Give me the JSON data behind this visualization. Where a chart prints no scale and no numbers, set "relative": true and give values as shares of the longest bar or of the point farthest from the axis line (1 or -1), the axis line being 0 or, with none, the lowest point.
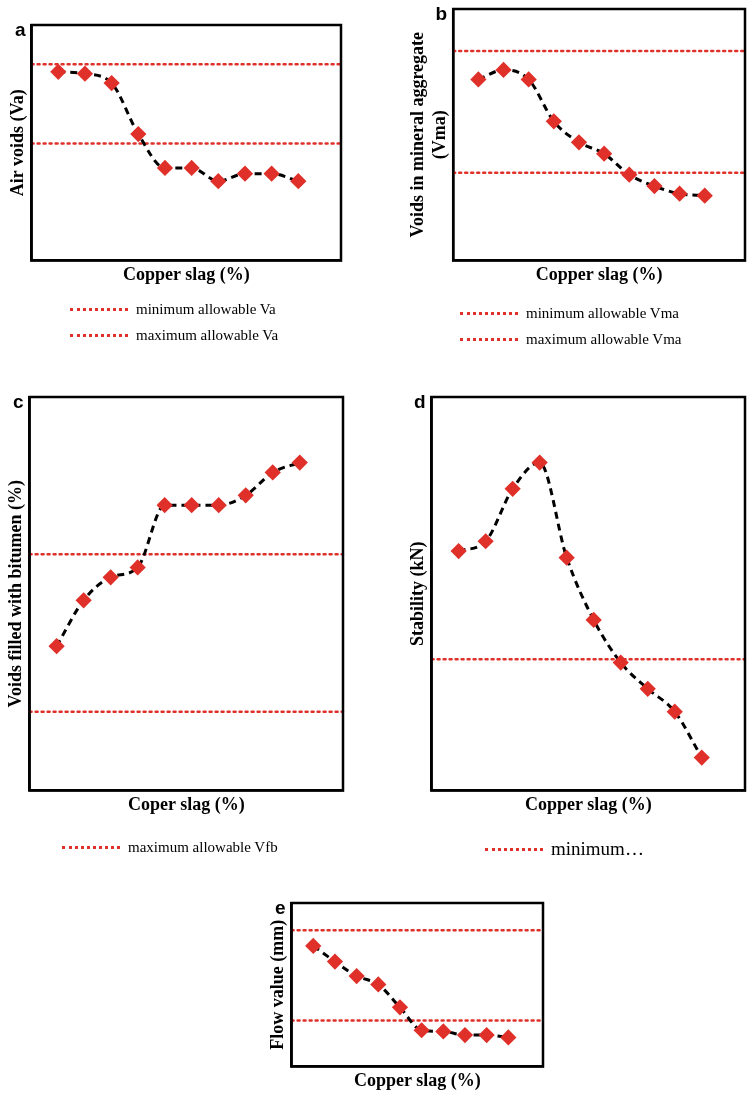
{
  "chart_data": [
    {
      "type": "line",
      "title": "a",
      "xlabel": "Copper slag (%)",
      "ylabel": "Air voids (Va)",
      "relative": true,
      "legend": "bottom",
      "categories": [
        null,
        null,
        null,
        null,
        null,
        null,
        null,
        null,
        null,
        null
      ],
      "marker": "diamond",
      "line_style": "dashed",
      "grid": false,
      "series": [
        {
          "color": "#000000",
          "colors": [
            "#e0302a",
            "#e0302a",
            "#e0302a",
            "#e0302a",
            "#e0302a",
            "#e0302a",
            "#e0302a",
            "#e0302a",
            "#e0302a",
            "#e0302a"
          ],
          "values": [
            1,
            0.99,
            0.94,
            0.67,
            0.49,
            0.49,
            0.42,
            0.46,
            0.46,
            0.42
          ]
        }
      ],
      "ref_lines": [
        {
          "axis": "y",
          "value": 0.62,
          "label": "minimum allowable Va",
          "color": "#e0302a",
          "line_style": "dotted"
        },
        {
          "axis": "y",
          "value": 1.04,
          "label": "maximum allowable Va",
          "color": "#e0302a",
          "line_style": "dotted"
        }
      ]
    },
    {
      "type": "line",
      "title": "b",
      "xlabel": "Copper slag (%)",
      "ylabel": "Voids in mineral aggregate (Vma)",
      "relative": true,
      "legend": "bottom",
      "categories": [
        null,
        null,
        null,
        null,
        null,
        null,
        null,
        null,
        null,
        null
      ],
      "marker": "diamond",
      "line_style": "dashed",
      "grid": false,
      "series": [
        {
          "color": "#000000",
          "colors": [
            "#e0302a",
            "#e0302a",
            "#e0302a",
            "#e0302a",
            "#e0302a",
            "#e0302a",
            "#e0302a",
            "#e0302a",
            "#e0302a",
            "#e0302a"
          ],
          "values": [
            0.95,
            1,
            0.95,
            0.73,
            0.62,
            0.56,
            0.45,
            0.39,
            0.35,
            0.34
          ]
        }
      ],
      "ref_lines": [
        {
          "axis": "y",
          "value": 0.46,
          "label": "minimum allowable Vma",
          "color": "#e0302a",
          "line_style": "dotted"
        },
        {
          "axis": "y",
          "value": 1.1,
          "label": "maximum allowable Vma",
          "color": "#e0302a",
          "line_style": "dotted"
        }
      ]
    },
    {
      "type": "line",
      "title": "c",
      "xlabel": "Coper slag (%)",
      "ylabel": "Voids filled with bitumen (%)",
      "relative": true,
      "legend": "bottom",
      "categories": [
        null,
        null,
        null,
        null,
        null,
        null,
        null,
        null,
        null,
        null
      ],
      "marker": "diamond",
      "line_style": "dashed",
      "grid": false,
      "series": [
        {
          "color": "#000000",
          "colors": [
            "#e0302a",
            "#e0302a",
            "#e0302a",
            "#e0302a",
            "#e0302a",
            "#e0302a",
            "#e0302a",
            "#e0302a",
            "#e0302a",
            "#e0302a"
          ],
          "values": [
            0.44,
            0.58,
            0.65,
            0.68,
            0.87,
            0.87,
            0.87,
            0.9,
            0.97,
            1
          ]
        }
      ],
      "ref_lines": [
        {
          "axis": "y",
          "value": 0.72,
          "label": "maximum allowable Vfb",
          "color": "#e0302a",
          "line_style": "dotted"
        },
        {
          "axis": "y",
          "value": 0.24,
          "label": null,
          "color": "#e0302a",
          "line_style": "dotted"
        }
      ]
    },
    {
      "type": "line",
      "title": "d",
      "xlabel": "Copper slag (%)",
      "ylabel": "Stability (kN)",
      "relative": true,
      "legend": "bottom",
      "categories": [
        null,
        null,
        null,
        null,
        null,
        null,
        null,
        null,
        null,
        null
      ],
      "marker": "diamond",
      "line_style": "dashed",
      "grid": false,
      "series": [
        {
          "color": "#000000",
          "colors": [
            "#e0302a",
            "#e0302a",
            "#e0302a",
            "#e0302a",
            "#e0302a",
            "#e0302a",
            "#e0302a",
            "#e0302a",
            "#e0302a",
            "#e0302a"
          ],
          "values": [
            0.73,
            0.76,
            0.92,
            1,
            0.71,
            0.52,
            0.39,
            0.31,
            0.24,
            0.1
          ]
        }
      ],
      "ref_lines": [
        {
          "axis": "y",
          "value": 0.4,
          "label": "minimum…",
          "color": "#e0302a",
          "line_style": "dotted"
        }
      ]
    },
    {
      "type": "line",
      "title": "e",
      "xlabel": "Copper slag (%)",
      "ylabel": "Flow value (mm)",
      "relative": true,
      "categories": [
        null,
        null,
        null,
        null,
        null,
        null,
        null,
        null,
        null,
        null
      ],
      "marker": "diamond",
      "line_style": "dashed",
      "grid": false,
      "series": [
        {
          "color": "#000000",
          "colors": [
            "#e0302a",
            "#e0302a",
            "#e0302a",
            "#e0302a",
            "#e0302a",
            "#e0302a",
            "#e0302a",
            "#e0302a",
            "#e0302a",
            "#e0302a"
          ],
          "values": [
            1,
            0.87,
            0.75,
            0.68,
            0.49,
            0.3,
            0.29,
            0.26,
            0.26,
            0.24
          ]
        }
      ],
      "ref_lines": [
        {
          "axis": "y",
          "value": 1.13,
          "label": null,
          "color": "#e0302a",
          "line_style": "dotted"
        },
        {
          "axis": "y",
          "value": 0.38,
          "label": null,
          "color": "#e0302a",
          "line_style": "dotted"
        }
      ]
    }
  ]
}
